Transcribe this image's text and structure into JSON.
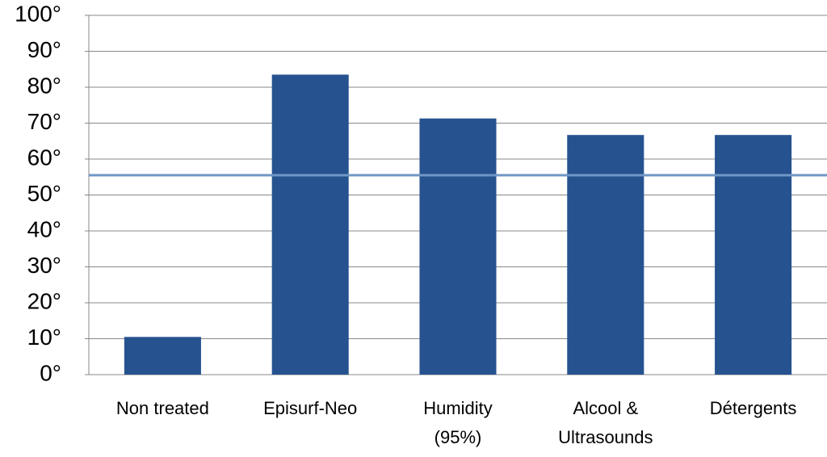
{
  "chart_data": {
    "type": "bar",
    "categories": [
      "Non treated",
      "Episurf-Neo",
      "Humidity\n(95%)",
      "Alcool &\nUltrasounds",
      "Détergents"
    ],
    "values": [
      10.5,
      83.5,
      71.3,
      66.7,
      66.7
    ],
    "color": "#26538f",
    "reference_line": 55.5,
    "reference_color": "#6f97c6",
    "ylim": [
      0,
      100
    ],
    "yticks": [
      {
        "value": 0,
        "label": "0°"
      },
      {
        "value": 10,
        "label": "10°"
      },
      {
        "value": 20,
        "label": "20°"
      },
      {
        "value": 30,
        "label": "30°"
      },
      {
        "value": 40,
        "label": "40°"
      },
      {
        "value": 50,
        "label": "50°"
      },
      {
        "value": 60,
        "label": "60°"
      },
      {
        "value": 70,
        "label": "70°"
      },
      {
        "value": 80,
        "label": "80°"
      },
      {
        "value": 90,
        "label": "90°"
      },
      {
        "value": 100,
        "label": "100°"
      }
    ],
    "grid": true
  }
}
